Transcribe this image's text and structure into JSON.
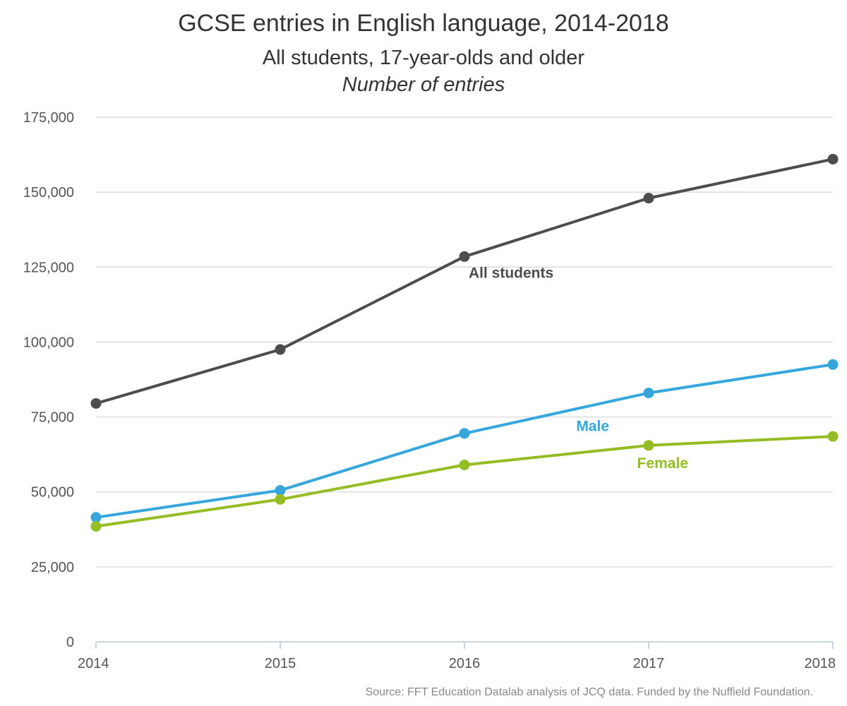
{
  "chart_data": {
    "type": "line",
    "title": "GCSE entries in English language, 2014-2018",
    "subtitle": "All students, 17-year-olds and older",
    "subtitle2": "Number of entries",
    "source": "Source: FFT Education Datalab analysis of JCQ data. Funded by the Nuffield Foundation.",
    "x": [
      "2014",
      "2015",
      "2016",
      "2017",
      "2018"
    ],
    "ylim": [
      0,
      175000
    ],
    "yticks": [
      {
        "value": 0,
        "label": "0"
      },
      {
        "value": 25000,
        "label": "25,000"
      },
      {
        "value": 50000,
        "label": "50,000"
      },
      {
        "value": 75000,
        "label": "75,000"
      },
      {
        "value": 100000,
        "label": "100,000"
      },
      {
        "value": 125000,
        "label": "125,000"
      },
      {
        "value": 150000,
        "label": "150,000"
      },
      {
        "value": 175000,
        "label": "175,000"
      }
    ],
    "grid": true,
    "series": [
      {
        "name": "All students",
        "color": "#4d4d4d",
        "values": [
          79500,
          97500,
          128500,
          148000,
          161000
        ],
        "label_at": 2
      },
      {
        "name": "Male",
        "color": "#35a7dc",
        "values": [
          41500,
          50500,
          69500,
          83000,
          92500
        ],
        "label_at": 3
      },
      {
        "name": "Female",
        "color": "#93bd23",
        "values": [
          38500,
          47500,
          59000,
          65500,
          68500
        ],
        "label_at": 3
      }
    ]
  }
}
